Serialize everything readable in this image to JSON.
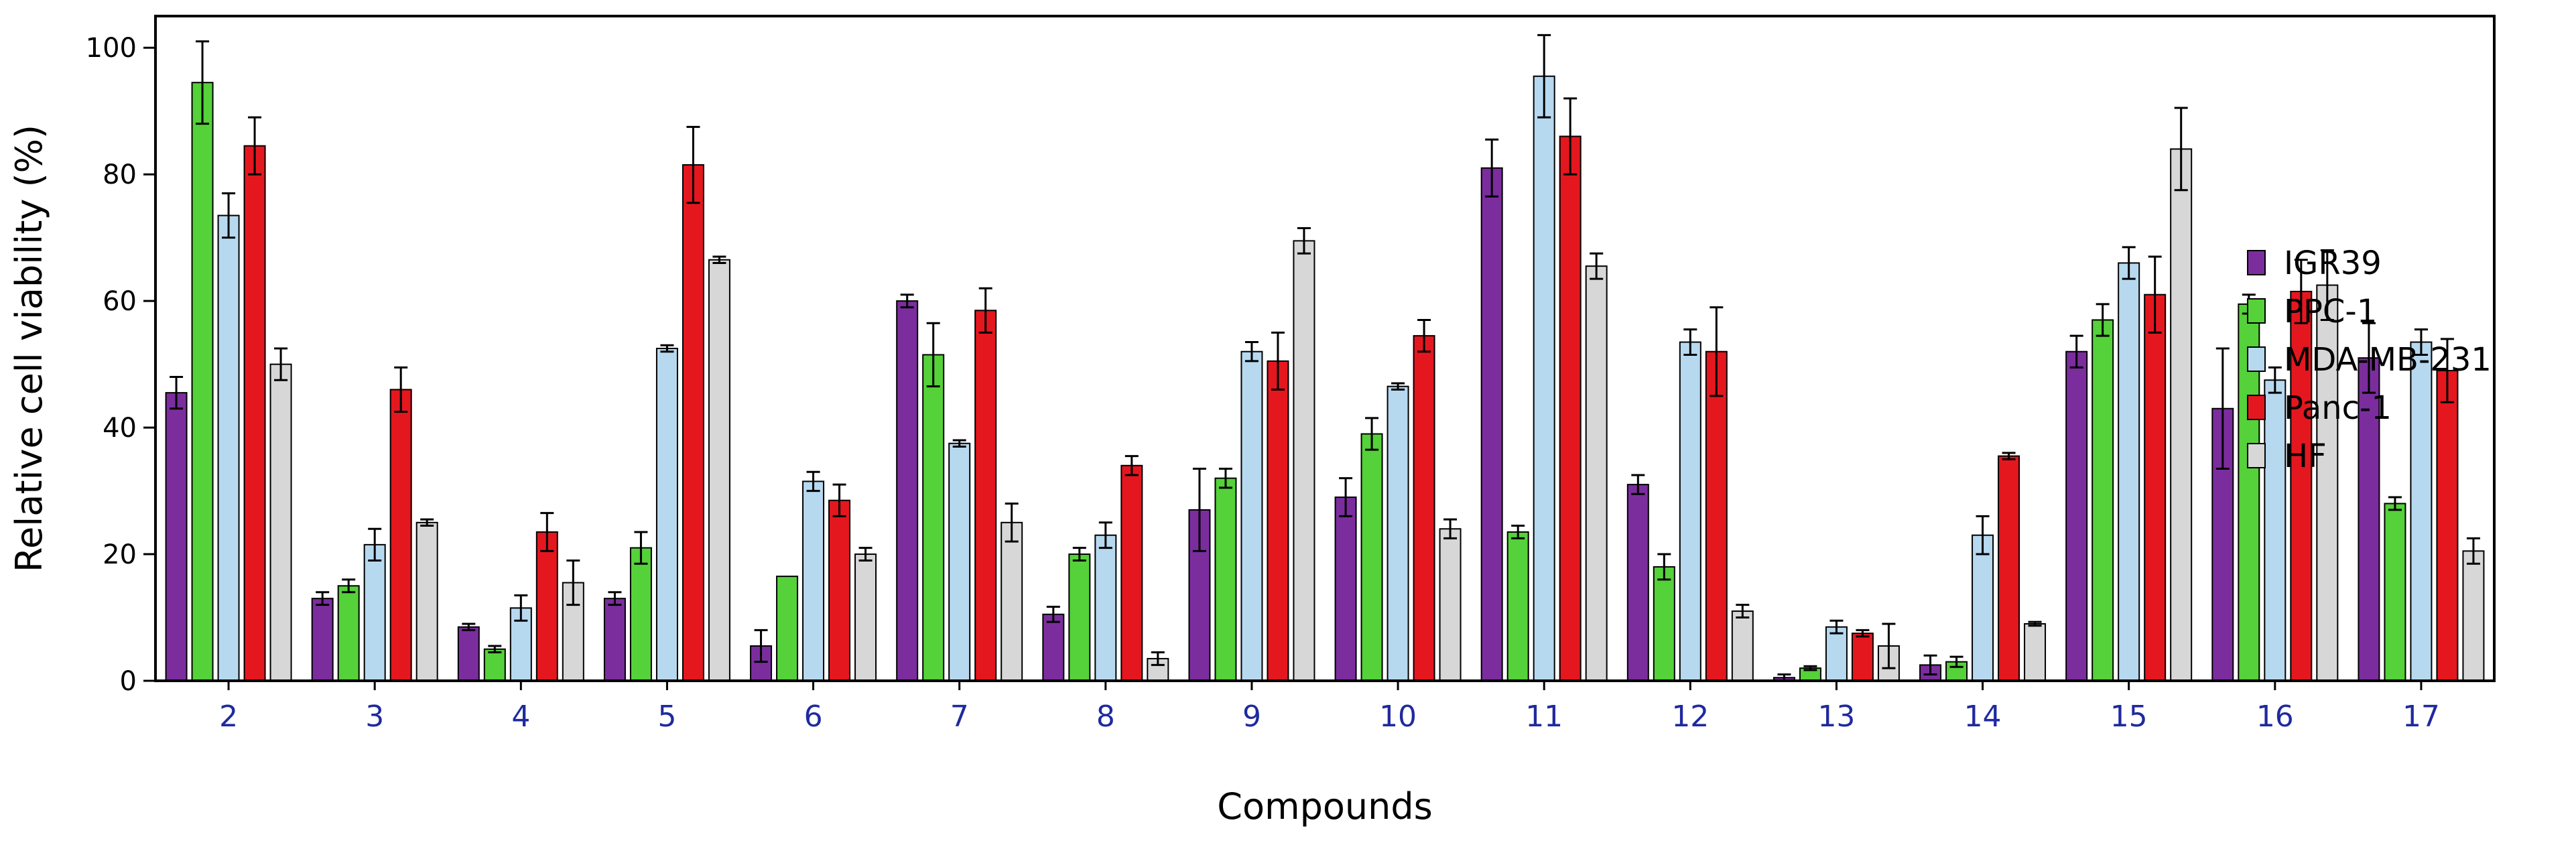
{
  "chart_data": {
    "type": "bar",
    "xlabel": "Compounds",
    "ylabel": "Relative cell viability (%)",
    "ylim": [
      0,
      105
    ],
    "yticks": [
      0,
      20,
      40,
      60,
      80,
      100
    ],
    "grid": false,
    "legend_position": "right",
    "categories": [
      "2",
      "3",
      "4",
      "5",
      "6",
      "7",
      "8",
      "9",
      "10",
      "11",
      "12",
      "13",
      "14",
      "15",
      "16",
      "17"
    ],
    "series": [
      {
        "name": "IGR39",
        "color": "#7b2d9e",
        "values": [
          45.5,
          13,
          8.5,
          13,
          5.5,
          60,
          10.5,
          27,
          29,
          81,
          31,
          0.5,
          2.5,
          52,
          43,
          51
        ],
        "errors": [
          2.5,
          1,
          0.5,
          1,
          2.5,
          1,
          1.2,
          6.5,
          3,
          4.5,
          1.5,
          0.5,
          1.5,
          2.5,
          9.5,
          5.5
        ]
      },
      {
        "name": "PPC-1",
        "color": "#55d13a",
        "values": [
          94.5,
          15,
          5,
          21,
          16.5,
          51.5,
          20,
          32,
          39,
          23.5,
          18,
          2,
          3,
          57,
          59.5,
          28
        ],
        "errors": [
          6.5,
          1,
          0.5,
          2.5,
          0,
          5,
          1,
          1.5,
          2.5,
          1,
          2,
          0.3,
          0.8,
          2.5,
          1.5,
          1
        ]
      },
      {
        "name": "MDA-MB-231",
        "color": "#b7d9f0",
        "values": [
          73.5,
          21.5,
          11.5,
          52.5,
          31.5,
          37.5,
          23,
          52,
          46.5,
          95.5,
          53.5,
          8.5,
          23,
          66,
          47.5,
          53.5
        ],
        "errors": [
          3.5,
          2.5,
          2,
          0.5,
          1.5,
          0.5,
          2,
          1.5,
          0.5,
          6.5,
          2,
          1,
          3,
          2.5,
          2,
          2
        ]
      },
      {
        "name": "Panc-1",
        "color": "#e4171f",
        "values": [
          84.5,
          46,
          23.5,
          81.5,
          28.5,
          58.5,
          34,
          50.5,
          54.5,
          86,
          52,
          7.5,
          35.5,
          61,
          61.5,
          49
        ],
        "errors": [
          4.5,
          3.5,
          3,
          6,
          2.5,
          3.5,
          1.5,
          4.5,
          2.5,
          6,
          7,
          0.5,
          0.5,
          6,
          5,
          5
        ]
      },
      {
        "name": "HF",
        "color": "#d7d7d7",
        "values": [
          50,
          25,
          15.5,
          66.5,
          20,
          25,
          3.5,
          69.5,
          24,
          65.5,
          11,
          5.5,
          9,
          84,
          62.5,
          20.5
        ],
        "errors": [
          2.5,
          0.5,
          3.5,
          0.5,
          1,
          3,
          1,
          2,
          1.5,
          2,
          1,
          3.5,
          0.3,
          6.5,
          5.5,
          2
        ]
      }
    ]
  }
}
